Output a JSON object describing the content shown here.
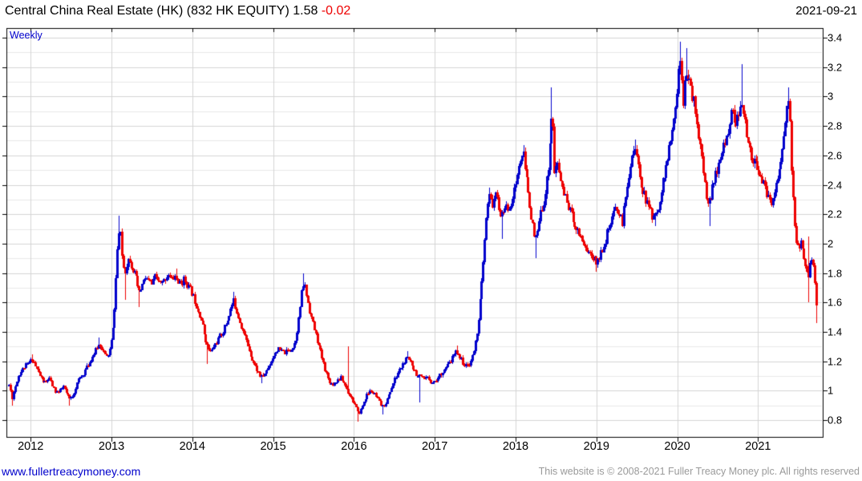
{
  "header": {
    "title_main": "Central China Real Estate (HK) (832 HK EQUITY)",
    "last_price": "1.58",
    "change": "-0.02",
    "date": "2021-09-21"
  },
  "chart": {
    "interval_label": "Weekly"
  },
  "footer": {
    "site": "www.fullertreacymoney.com",
    "copyright": "This website is © 2008-2021 Fuller Treacy Money plc. All rights reserved"
  },
  "chart_data": {
    "type": "candlestick",
    "interval": "weekly",
    "title": "Central China Real Estate (HK) (832 HK EQUITY)",
    "instrument": "832 HK EQUITY",
    "as_of": "2021-09-21",
    "last_close": 1.58,
    "change": -0.02,
    "x_ticks": [
      "2012",
      "2013",
      "2014",
      "2015",
      "2016",
      "2017",
      "2018",
      "2019",
      "2020",
      "2021"
    ],
    "y_ticks": [
      "0.8",
      "1",
      "1.2",
      "1.4",
      "1.6",
      "1.8",
      "2",
      "2.2",
      "2.4",
      "2.6",
      "2.8",
      "3",
      "3.2",
      "3.4"
    ],
    "y_gridline_step": 0.1,
    "x_range": [
      2011.7,
      2021.8
    ],
    "y_range": [
      0.69,
      3.46
    ],
    "legend_position": "none",
    "grid": true,
    "colors": {
      "up": "#0000cc",
      "down": "#ee0000",
      "grid_major": "#d4d4d4",
      "grid_minor": "#e8e8e8",
      "axis": "#000000"
    },
    "weeks_per_year": 52.18,
    "start": 2011.73,
    "end": 2021.72,
    "noise_frac": 0.015,
    "wick_frac": 0.012,
    "seed": 11,
    "close_path": [
      [
        2011.73,
        1.04
      ],
      [
        2011.77,
        0.95
      ],
      [
        2011.8,
        1.02
      ],
      [
        2011.84,
        1.1
      ],
      [
        2011.88,
        1.13
      ],
      [
        2011.92,
        1.16
      ],
      [
        2011.98,
        1.19
      ],
      [
        2012.02,
        1.22
      ],
      [
        2012.06,
        1.16
      ],
      [
        2012.1,
        1.12
      ],
      [
        2012.14,
        1.07
      ],
      [
        2012.18,
        1.05
      ],
      [
        2012.22,
        1.09
      ],
      [
        2012.26,
        1.04
      ],
      [
        2012.3,
        1.0
      ],
      [
        2012.35,
        0.99
      ],
      [
        2012.4,
        1.03
      ],
      [
        2012.44,
        0.98
      ],
      [
        2012.48,
        0.94
      ],
      [
        2012.52,
        0.97
      ],
      [
        2012.56,
        1.03
      ],
      [
        2012.6,
        1.08
      ],
      [
        2012.65,
        1.12
      ],
      [
        2012.7,
        1.17
      ],
      [
        2012.75,
        1.22
      ],
      [
        2012.8,
        1.27
      ],
      [
        2012.85,
        1.32
      ],
      [
        2012.89,
        1.28
      ],
      [
        2012.93,
        1.22
      ],
      [
        2012.97,
        1.26
      ],
      [
        2013.01,
        1.38
      ],
      [
        2013.04,
        1.62
      ],
      [
        2013.07,
        1.95
      ],
      [
        2013.1,
        2.12
      ],
      [
        2013.13,
        1.92
      ],
      [
        2013.16,
        1.8
      ],
      [
        2013.19,
        1.87
      ],
      [
        2013.22,
        1.91
      ],
      [
        2013.25,
        1.84
      ],
      [
        2013.28,
        1.8
      ],
      [
        2013.31,
        1.74
      ],
      [
        2013.34,
        1.66
      ],
      [
        2013.38,
        1.72
      ],
      [
        2013.42,
        1.77
      ],
      [
        2013.46,
        1.74
      ],
      [
        2013.5,
        1.72
      ],
      [
        2013.54,
        1.78
      ],
      [
        2013.58,
        1.74
      ],
      [
        2013.62,
        1.72
      ],
      [
        2013.66,
        1.76
      ],
      [
        2013.7,
        1.8
      ],
      [
        2013.74,
        1.75
      ],
      [
        2013.78,
        1.78
      ],
      [
        2013.82,
        1.74
      ],
      [
        2013.86,
        1.72
      ],
      [
        2013.9,
        1.76
      ],
      [
        2013.95,
        1.71
      ],
      [
        2014.0,
        1.66
      ],
      [
        2014.05,
        1.58
      ],
      [
        2014.1,
        1.5
      ],
      [
        2014.15,
        1.38
      ],
      [
        2014.19,
        1.29
      ],
      [
        2014.23,
        1.26
      ],
      [
        2014.27,
        1.31
      ],
      [
        2014.32,
        1.35
      ],
      [
        2014.37,
        1.4
      ],
      [
        2014.42,
        1.46
      ],
      [
        2014.47,
        1.55
      ],
      [
        2014.51,
        1.61
      ],
      [
        2014.55,
        1.54
      ],
      [
        2014.6,
        1.45
      ],
      [
        2014.65,
        1.36
      ],
      [
        2014.7,
        1.28
      ],
      [
        2014.75,
        1.2
      ],
      [
        2014.8,
        1.14
      ],
      [
        2014.85,
        1.09
      ],
      [
        2014.9,
        1.12
      ],
      [
        2014.95,
        1.18
      ],
      [
        2015.0,
        1.24
      ],
      [
        2015.05,
        1.28
      ],
      [
        2015.1,
        1.27
      ],
      [
        2015.15,
        1.26
      ],
      [
        2015.2,
        1.28
      ],
      [
        2015.24,
        1.3
      ],
      [
        2015.28,
        1.36
      ],
      [
        2015.32,
        1.5
      ],
      [
        2015.35,
        1.65
      ],
      [
        2015.38,
        1.74
      ],
      [
        2015.42,
        1.63
      ],
      [
        2015.46,
        1.52
      ],
      [
        2015.5,
        1.43
      ],
      [
        2015.54,
        1.35
      ],
      [
        2015.58,
        1.27
      ],
      [
        2015.63,
        1.17
      ],
      [
        2015.68,
        1.08
      ],
      [
        2015.73,
        1.04
      ],
      [
        2015.78,
        1.07
      ],
      [
        2015.83,
        1.09
      ],
      [
        2015.88,
        1.05
      ],
      [
        2015.93,
        0.99
      ],
      [
        2015.97,
        0.95
      ],
      [
        2016.01,
        0.9
      ],
      [
        2016.05,
        0.84
      ],
      [
        2016.09,
        0.88
      ],
      [
        2016.13,
        0.94
      ],
      [
        2016.17,
        0.98
      ],
      [
        2016.21,
        1.0
      ],
      [
        2016.26,
        0.97
      ],
      [
        2016.31,
        0.92
      ],
      [
        2016.35,
        0.89
      ],
      [
        2016.4,
        0.93
      ],
      [
        2016.45,
        1.0
      ],
      [
        2016.5,
        1.07
      ],
      [
        2016.55,
        1.13
      ],
      [
        2016.6,
        1.18
      ],
      [
        2016.65,
        1.22
      ],
      [
        2016.7,
        1.2
      ],
      [
        2016.74,
        1.15
      ],
      [
        2016.78,
        1.11
      ],
      [
        2016.82,
        1.09
      ],
      [
        2016.86,
        1.07
      ],
      [
        2016.9,
        1.09
      ],
      [
        2016.94,
        1.07
      ],
      [
        2016.98,
        1.06
      ],
      [
        2017.03,
        1.08
      ],
      [
        2017.08,
        1.12
      ],
      [
        2017.13,
        1.15
      ],
      [
        2017.18,
        1.19
      ],
      [
        2017.23,
        1.24
      ],
      [
        2017.27,
        1.27
      ],
      [
        2017.31,
        1.23
      ],
      [
        2017.35,
        1.19
      ],
      [
        2017.39,
        1.16
      ],
      [
        2017.43,
        1.19
      ],
      [
        2017.47,
        1.24
      ],
      [
        2017.51,
        1.35
      ],
      [
        2017.55,
        1.55
      ],
      [
        2017.59,
        1.8
      ],
      [
        2017.62,
        2.05
      ],
      [
        2017.65,
        2.25
      ],
      [
        2017.68,
        2.33
      ],
      [
        2017.71,
        2.26
      ],
      [
        2017.74,
        2.34
      ],
      [
        2017.77,
        2.29
      ],
      [
        2017.8,
        2.22
      ],
      [
        2017.83,
        2.18
      ],
      [
        2017.86,
        2.26
      ],
      [
        2017.9,
        2.23
      ],
      [
        2017.94,
        2.28
      ],
      [
        2017.98,
        2.35
      ],
      [
        2018.02,
        2.47
      ],
      [
        2018.06,
        2.58
      ],
      [
        2018.09,
        2.62
      ],
      [
        2018.13,
        2.45
      ],
      [
        2018.17,
        2.28
      ],
      [
        2018.21,
        2.12
      ],
      [
        2018.24,
        2.0
      ],
      [
        2018.28,
        2.12
      ],
      [
        2018.32,
        2.24
      ],
      [
        2018.36,
        2.33
      ],
      [
        2018.4,
        2.5
      ],
      [
        2018.43,
        2.78
      ],
      [
        2018.45,
        2.93
      ],
      [
        2018.48,
        2.48
      ],
      [
        2018.52,
        2.54
      ],
      [
        2018.56,
        2.42
      ],
      [
        2018.6,
        2.33
      ],
      [
        2018.65,
        2.26
      ],
      [
        2018.7,
        2.18
      ],
      [
        2018.75,
        2.11
      ],
      [
        2018.8,
        2.06
      ],
      [
        2018.85,
        1.99
      ],
      [
        2018.9,
        1.94
      ],
      [
        2018.95,
        1.91
      ],
      [
        2019.0,
        1.87
      ],
      [
        2019.05,
        1.93
      ],
      [
        2019.1,
        2.01
      ],
      [
        2019.15,
        2.1
      ],
      [
        2019.2,
        2.18
      ],
      [
        2019.24,
        2.26
      ],
      [
        2019.28,
        2.2
      ],
      [
        2019.32,
        2.14
      ],
      [
        2019.36,
        2.3
      ],
      [
        2019.4,
        2.48
      ],
      [
        2019.44,
        2.62
      ],
      [
        2019.47,
        2.66
      ],
      [
        2019.51,
        2.53
      ],
      [
        2019.55,
        2.42
      ],
      [
        2019.6,
        2.31
      ],
      [
        2019.64,
        2.26
      ],
      [
        2019.68,
        2.2
      ],
      [
        2019.72,
        2.17
      ],
      [
        2019.76,
        2.25
      ],
      [
        2019.8,
        2.35
      ],
      [
        2019.85,
        2.5
      ],
      [
        2019.9,
        2.64
      ],
      [
        2019.95,
        2.8
      ],
      [
        2019.98,
        2.95
      ],
      [
        2020.01,
        3.15
      ],
      [
        2020.04,
        3.28
      ],
      [
        2020.07,
        2.97
      ],
      [
        2020.1,
        3.22
      ],
      [
        2020.13,
        3.12
      ],
      [
        2020.16,
        3.06
      ],
      [
        2020.2,
        2.98
      ],
      [
        2020.24,
        2.85
      ],
      [
        2020.28,
        2.66
      ],
      [
        2020.32,
        2.48
      ],
      [
        2020.36,
        2.32
      ],
      [
        2020.4,
        2.28
      ],
      [
        2020.44,
        2.38
      ],
      [
        2020.48,
        2.48
      ],
      [
        2020.52,
        2.55
      ],
      [
        2020.56,
        2.63
      ],
      [
        2020.6,
        2.72
      ],
      [
        2020.64,
        2.82
      ],
      [
        2020.68,
        2.9
      ],
      [
        2020.72,
        2.83
      ],
      [
        2020.76,
        2.86
      ],
      [
        2020.8,
        2.93
      ],
      [
        2020.84,
        2.8
      ],
      [
        2020.88,
        2.68
      ],
      [
        2020.92,
        2.59
      ],
      [
        2020.96,
        2.54
      ],
      [
        2021.0,
        2.51
      ],
      [
        2021.04,
        2.45
      ],
      [
        2021.08,
        2.38
      ],
      [
        2021.12,
        2.31
      ],
      [
        2021.16,
        2.27
      ],
      [
        2021.2,
        2.35
      ],
      [
        2021.24,
        2.46
      ],
      [
        2021.28,
        2.56
      ],
      [
        2021.32,
        2.72
      ],
      [
        2021.35,
        2.9
      ],
      [
        2021.38,
        3.0
      ],
      [
        2021.41,
        2.55
      ],
      [
        2021.44,
        2.2
      ],
      [
        2021.47,
        2.02
      ],
      [
        2021.5,
        1.95
      ],
      [
        2021.53,
        2.0
      ],
      [
        2021.56,
        1.9
      ],
      [
        2021.59,
        1.82
      ],
      [
        2021.62,
        1.77
      ],
      [
        2021.65,
        1.88
      ],
      [
        2021.67,
        1.93
      ],
      [
        2021.69,
        1.8
      ],
      [
        2021.71,
        1.67
      ],
      [
        2021.72,
        1.58
      ]
    ],
    "wick_events": [
      {
        "t": 2011.76,
        "low": 0.9
      },
      {
        "t": 2012.02,
        "high": 1.25
      },
      {
        "t": 2012.48,
        "low": 0.9
      },
      {
        "t": 2012.85,
        "high": 1.36
      },
      {
        "t": 2013.1,
        "high": 2.19
      },
      {
        "t": 2013.16,
        "low": 1.62
      },
      {
        "t": 2013.34,
        "low": 1.57
      },
      {
        "t": 2013.8,
        "high": 1.83
      },
      {
        "t": 2014.19,
        "low": 1.18
      },
      {
        "t": 2014.51,
        "high": 1.67
      },
      {
        "t": 2014.85,
        "low": 1.05
      },
      {
        "t": 2015.38,
        "high": 1.8
      },
      {
        "t": 2015.93,
        "high": 1.3,
        "low": 0.98
      },
      {
        "t": 2016.05,
        "low": 0.79
      },
      {
        "t": 2016.35,
        "low": 0.84
      },
      {
        "t": 2016.65,
        "high": 1.27
      },
      {
        "t": 2016.82,
        "low": 0.92
      },
      {
        "t": 2017.27,
        "high": 1.31
      },
      {
        "t": 2017.68,
        "high": 2.38
      },
      {
        "t": 2017.83,
        "low": 2.03
      },
      {
        "t": 2018.09,
        "high": 2.67
      },
      {
        "t": 2018.24,
        "low": 1.9
      },
      {
        "t": 2018.45,
        "high": 3.06
      },
      {
        "t": 2019.0,
        "low": 1.81
      },
      {
        "t": 2019.47,
        "high": 2.71
      },
      {
        "t": 2019.72,
        "low": 2.12
      },
      {
        "t": 2020.04,
        "high": 3.375
      },
      {
        "t": 2020.1,
        "high": 3.33
      },
      {
        "t": 2020.4,
        "low": 2.12
      },
      {
        "t": 2020.8,
        "high": 3.22
      },
      {
        "t": 2021.38,
        "high": 3.06
      },
      {
        "t": 2021.62,
        "high": 2.05,
        "low": 1.6
      },
      {
        "t": 2021.72,
        "low": 1.46
      }
    ]
  }
}
